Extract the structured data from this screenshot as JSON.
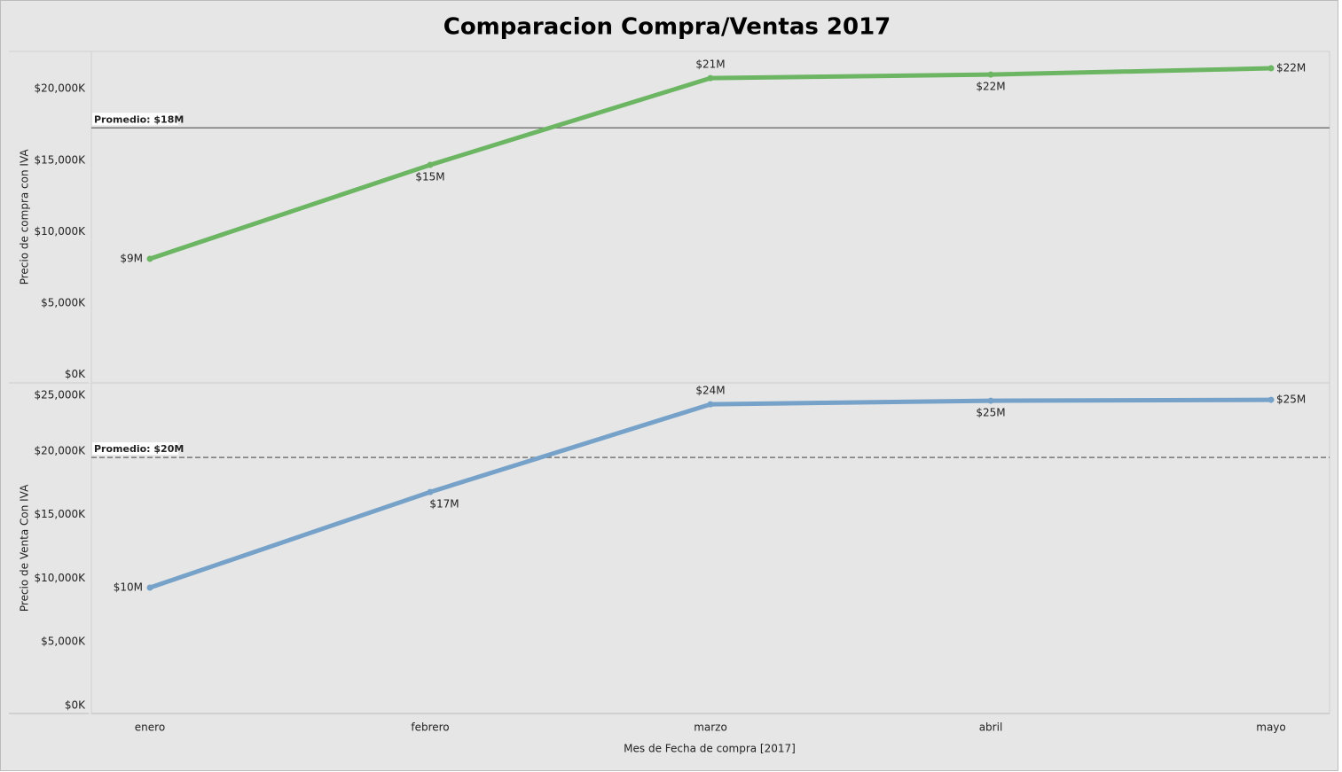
{
  "chart_data": {
    "type": "line",
    "title": "Comparacion Compra/Ventas 2017",
    "categories": [
      "enero",
      "febrero",
      "marzo",
      "abril",
      "mayo"
    ],
    "xlabel": "Mes de Fecha de compra [2017]",
    "panels": [
      {
        "ylabel": "Precio de compra con IVA",
        "ylim": [
          0,
          23170
        ],
        "yticks": [
          {
            "value": 0,
            "label": "$0K"
          },
          {
            "value": 5000,
            "label": "$5,000K"
          },
          {
            "value": 10000,
            "label": "$10,000K"
          },
          {
            "value": 15000,
            "label": "$15,000K"
          },
          {
            "value": 20000,
            "label": "$20,000K"
          }
        ],
        "series": [
          {
            "color": "#6cb663",
            "values": [
              8660,
              15230,
              21300,
              21550,
              21990
            ],
            "value_labels": [
              "$9M",
              "$15M",
              "$21M",
              "$22M",
              "$22M"
            ]
          }
        ],
        "reference": {
          "value": 17820,
          "label": "Promedio: $18M",
          "dashed": false
        }
      },
      {
        "ylabel": "Precio de Venta Con IVA",
        "ylim": [
          0,
          25980
        ],
        "yticks": [
          {
            "value": 0,
            "label": "$0K"
          },
          {
            "value": 5000,
            "label": "$5,000K"
          },
          {
            "value": 10000,
            "label": "$10,000K"
          },
          {
            "value": 15000,
            "label": "$15,000K"
          },
          {
            "value": 20000,
            "label": "$20,000K"
          },
          {
            "value": 25000,
            "label": "$25,000K"
          }
        ],
        "series": [
          {
            "color": "#76a1c8",
            "values": [
              9880,
              17400,
              24300,
              24580,
              24650
            ],
            "value_labels": [
              "$10M",
              "$17M",
              "$24M",
              "$25M",
              "$25M"
            ]
          }
        ],
        "reference": {
          "value": 20120,
          "label": "Promedio: $20M",
          "dashed": true
        }
      }
    ]
  }
}
